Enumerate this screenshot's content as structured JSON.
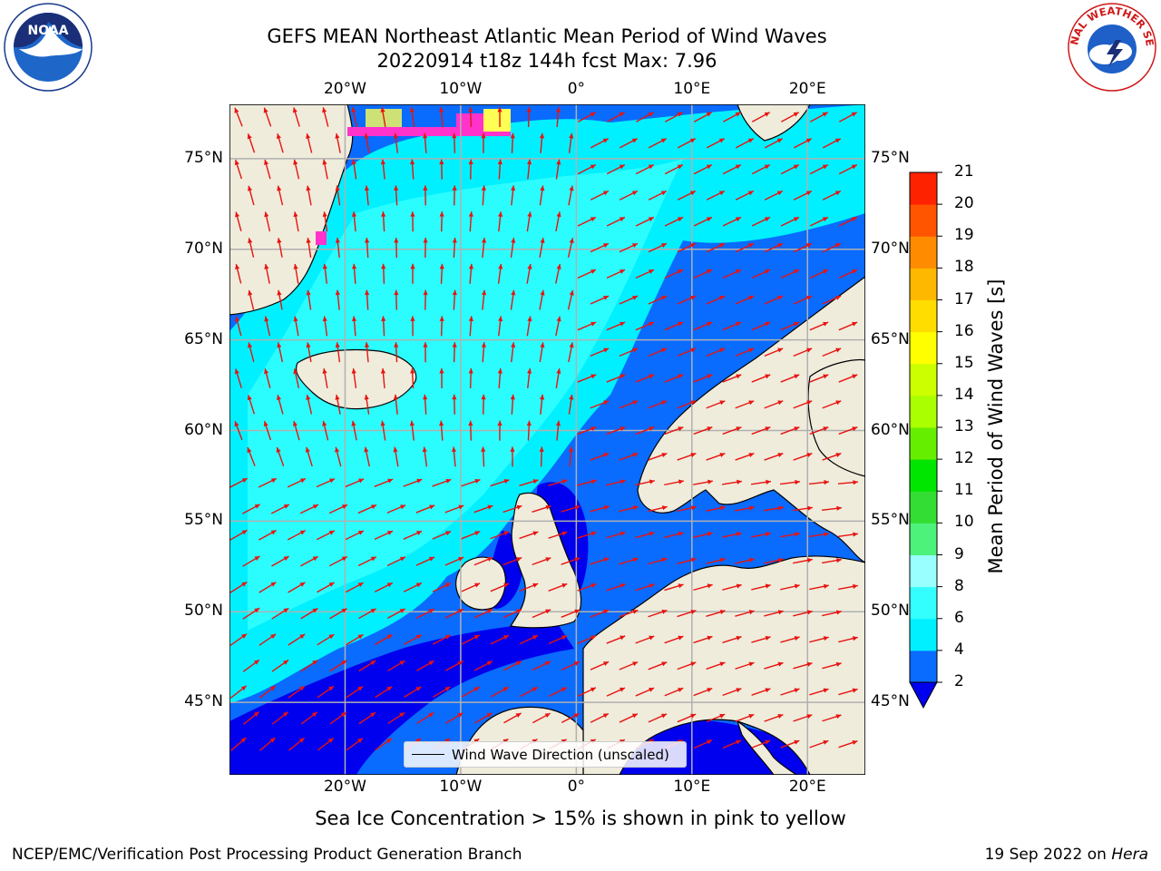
{
  "title": {
    "line1": "GEFS MEAN Northeast Atlantic Mean Period of Wind Waves",
    "line2": "20220914 t18z 144h fcst   Max: 7.96"
  },
  "map": {
    "lon_range": [
      -30,
      25
    ],
    "lat_range": [
      41,
      78
    ],
    "x_ticks": [
      {
        "lon": -20,
        "label": "20°W"
      },
      {
        "lon": -10,
        "label": "10°W"
      },
      {
        "lon": 0,
        "label": "0°"
      },
      {
        "lon": 10,
        "label": "10°E"
      },
      {
        "lon": 20,
        "label": "20°E"
      }
    ],
    "y_ticks": [
      {
        "lat": 75,
        "label": "75°N"
      },
      {
        "lat": 70,
        "label": "70°N"
      },
      {
        "lat": 65,
        "label": "65°N"
      },
      {
        "lat": 60,
        "label": "60°N"
      },
      {
        "lat": 55,
        "label": "55°N"
      },
      {
        "lat": 50,
        "label": "50°N"
      },
      {
        "lat": 45,
        "label": "45°N"
      }
    ],
    "colors": {
      "land": "#efecdc",
      "grid": "#b0b0b0",
      "arrow": "#e8130f",
      "ice_pink": "#ff33cc",
      "ice_yellow": "#ffff55"
    },
    "legend_label": "Wind Wave Direction (unscaled)"
  },
  "colorbar": {
    "title": "Mean Period of Wind Waves [s]",
    "levels": [
      2,
      4,
      6,
      8,
      9,
      10,
      11,
      12,
      13,
      14,
      15,
      16,
      17,
      18,
      19,
      20,
      21
    ],
    "labels": [
      "2",
      "4",
      "6",
      "8",
      "9",
      "10",
      "11",
      "12",
      "13",
      "14",
      "15",
      "16",
      "17",
      "18",
      "19",
      "20",
      "21"
    ],
    "colors": [
      "#0a6bff",
      "#00f0ff",
      "#33ffff",
      "#99ffff",
      "#4cf27a",
      "#33dd33",
      "#00e600",
      "#66ee00",
      "#aaff00",
      "#ccff00",
      "#ffff00",
      "#ffdd00",
      "#ffb800",
      "#ff8c00",
      "#ff5500",
      "#ff2200"
    ],
    "under_color": "#0000ee"
  },
  "bottom_note": "Sea Ice Concentration > 15% is shown in pink to yellow",
  "footer": {
    "left": "NCEP/EMC/Verification Post Processing Product Generation Branch",
    "right_prefix": "19 Sep 2022 on ",
    "right_host": "Hera"
  },
  "logos": {
    "left_text": "NOAA",
    "right_text": "NATIONAL WEATHER SERVICE"
  }
}
